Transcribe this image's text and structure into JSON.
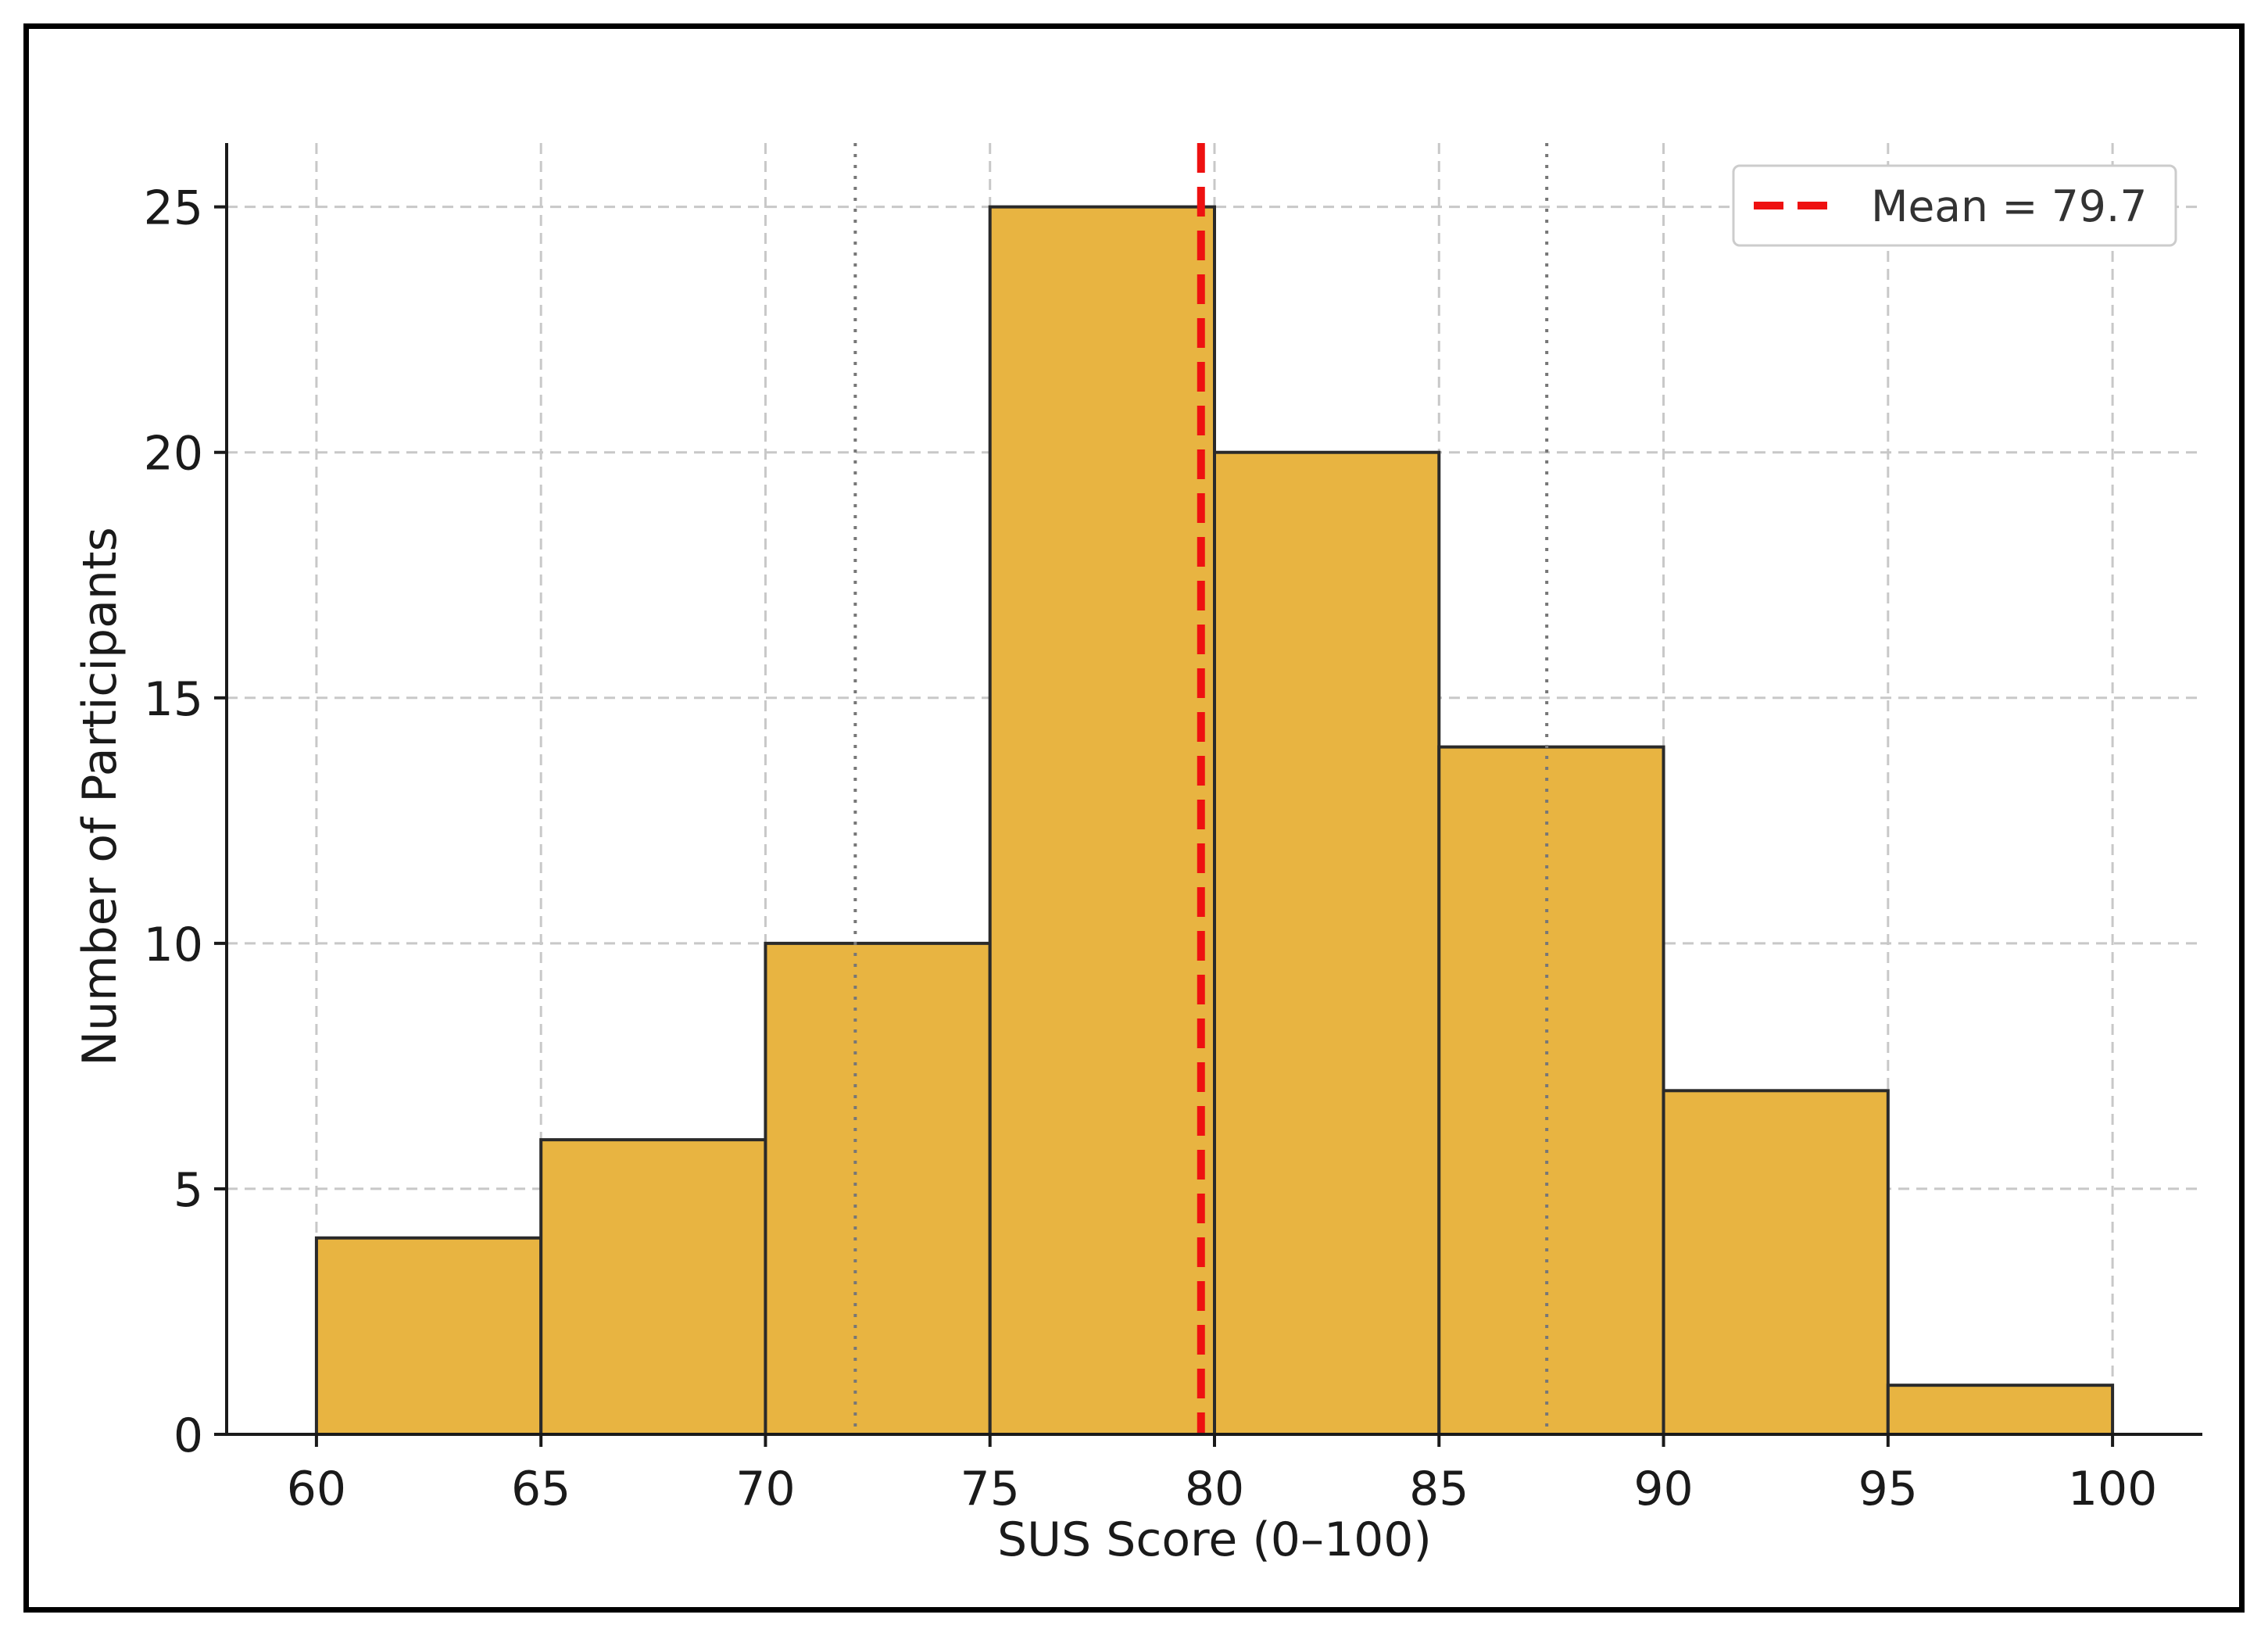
{
  "chart_data": {
    "type": "bar",
    "subtype": "histogram",
    "bin_edges": [
      60,
      65,
      70,
      75,
      80,
      85,
      90,
      95,
      100
    ],
    "values": [
      4,
      6,
      10,
      25,
      20,
      14,
      7,
      1
    ],
    "xlabel": "SUS Score (0–100)",
    "ylabel": "Number of Participants",
    "xlim": [
      58,
      102
    ],
    "ylim": [
      0,
      26.3
    ],
    "x_ticks": [
      "60",
      "65",
      "70",
      "75",
      "80",
      "85",
      "90",
      "95",
      "100"
    ],
    "y_ticks": [
      "0",
      "5",
      "10",
      "15",
      "20",
      "25"
    ],
    "x_tick_values": [
      60,
      65,
      70,
      75,
      80,
      85,
      90,
      95,
      100
    ],
    "y_tick_values": [
      0,
      5,
      10,
      15,
      20,
      25
    ],
    "grid": true,
    "dotted_reference_lines": [
      72,
      87.4
    ],
    "mean_line": {
      "value": 79.7,
      "label": "Mean = 79.7",
      "color": "#ee1111",
      "style": "dashed"
    },
    "legend": {
      "position": "top-right",
      "entries": [
        "Mean = 79.7"
      ]
    },
    "colors": {
      "bar_fill": "#e8b441",
      "bar_edge": "#2a2a2a",
      "grid": "#c8c8c8",
      "dotted_line": "#777777"
    }
  }
}
